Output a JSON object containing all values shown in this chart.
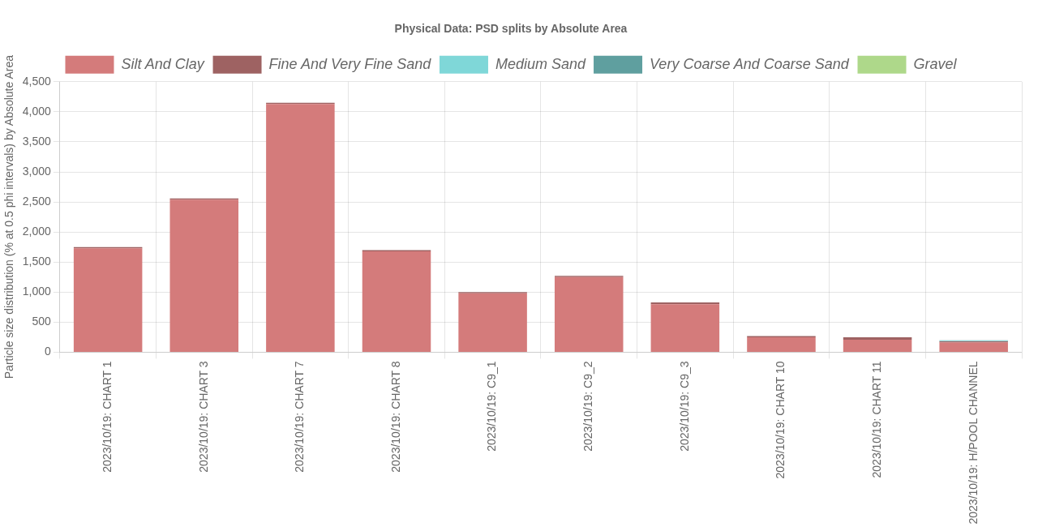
{
  "chart_data": {
    "type": "bar",
    "title": "Physical Data: PSD splits by Absolute Area",
    "ylabel": "Particle size distribution (% at 0.5 phi intervals) by Absolute Area",
    "categories": [
      "2023/10/19: CHART 1",
      "2023/10/19: CHART 3",
      "2023/10/19: CHART 7",
      "2023/10/19: CHART 8",
      "2023/10/19: C9_1",
      "2023/10/19: C9_2",
      "2023/10/19: C9_3",
      "2023/10/19: CHART 10",
      "2023/10/19: CHART 11",
      "2023/10/19: H/POOL CHANNEL"
    ],
    "stacked": true,
    "series": [
      {
        "name": "Silt And Clay",
        "color": "#d47b7b",
        "values": [
          1730,
          2540,
          4130,
          1680,
          980,
          1250,
          800,
          250,
          210,
          160
        ]
      },
      {
        "name": "Fine And Very Fine Sand",
        "color": "#9e6262",
        "values": [
          20,
          20,
          20,
          20,
          20,
          20,
          30,
          20,
          40,
          20
        ]
      },
      {
        "name": "Medium Sand",
        "color": "#7fd7d8",
        "values": [
          0,
          0,
          0,
          0,
          0,
          0,
          0,
          0,
          0,
          10
        ]
      },
      {
        "name": "Very Coarse And Coarse Sand",
        "color": "#5f9f9f",
        "values": [
          0,
          0,
          0,
          0,
          0,
          0,
          0,
          0,
          0,
          10
        ]
      },
      {
        "name": "Gravel",
        "color": "#aed88a",
        "values": [
          0,
          0,
          0,
          0,
          0,
          0,
          0,
          0,
          0,
          0
        ]
      }
    ],
    "ylim": [
      0,
      4500
    ],
    "yticks": [
      0,
      500,
      {
        "value": 1000,
        "label": "1,000"
      },
      {
        "value": 1500,
        "label": "1,500"
      },
      {
        "value": 2000,
        "label": "2,000"
      },
      {
        "value": 2500,
        "label": "2,500"
      },
      {
        "value": 3000,
        "label": "3,000"
      },
      {
        "value": 3500,
        "label": "3,500"
      },
      {
        "value": 4000,
        "label": "4,000"
      },
      {
        "value": 4500,
        "label": "4,500"
      }
    ],
    "grid": true,
    "legend": "top"
  }
}
